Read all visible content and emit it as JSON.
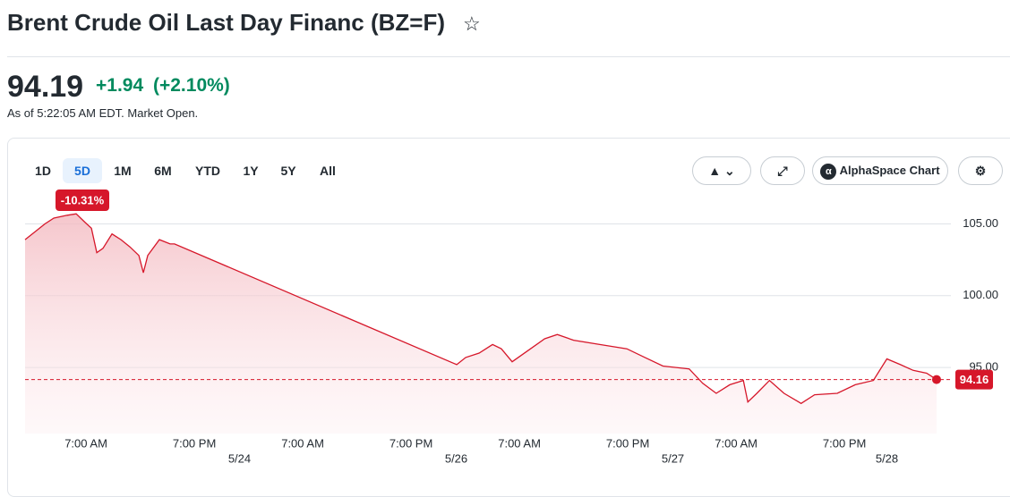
{
  "header": {
    "title": "Brent Crude Oil Last Day Financ (BZ=F)",
    "price": "94.19",
    "change": "+1.94",
    "change_percent": "(+2.10%)",
    "as_of": "As of 5:22:05 AM EDT. Market Open."
  },
  "toolbar": {
    "ranges": [
      "1D",
      "5D",
      "1M",
      "6M",
      "YTD",
      "1Y",
      "5Y",
      "All"
    ],
    "alphaspace": "AlphaSpace Chart"
  },
  "chart_data": {
    "type": "line",
    "color": "#d6172a",
    "badge": "-10.31%",
    "current_value": 94.16,
    "x": [
      -6.75,
      -5.55,
      -4.56,
      -3.57,
      -2.08,
      -1.09,
      -0.1,
      0.6,
      1.19,
      1.88,
      2.88,
      3.87,
      4.86,
      5.85,
      6.35,
      6.84,
      8.13,
      9.32,
      9.8,
      41.06,
      42.05,
      43.54,
      45.03,
      46.0,
      47.2,
      49.0,
      50.8,
      52.2,
      54.0,
      56.9,
      59.9,
      61.9,
      63.9,
      66.8,
      68.3,
      69.8,
      71.3,
      72.8,
      73.3,
      74.3,
      75.7,
      77.3,
      79.2,
      80.7,
      83.2,
      85.2,
      87.2,
      88.7,
      90.2,
      91.6,
      93.1,
      94.2
    ],
    "values": [
      103.9,
      104.5,
      105.0,
      105.4,
      105.6,
      105.7,
      105.1,
      104.7,
      103.0,
      103.3,
      104.3,
      103.9,
      103.4,
      102.8,
      101.6,
      102.8,
      103.9,
      103.6,
      103.6,
      95.2,
      95.7,
      96.0,
      96.6,
      96.3,
      95.4,
      96.2,
      97.0,
      97.3,
      96.9,
      96.6,
      96.3,
      95.7,
      95.1,
      94.9,
      93.9,
      93.2,
      93.8,
      94.1,
      92.6,
      93.2,
      94.1,
      93.2,
      92.5,
      93.1,
      93.2,
      93.8,
      94.1,
      95.6,
      95.2,
      94.8,
      94.6,
      94.16
    ],
    "xlim": [
      -6.75,
      94.5
    ],
    "xticks": [
      {
        "value": 0,
        "label": "7:00 AM"
      },
      {
        "value": 12,
        "label": "7:00 PM"
      },
      {
        "value": 24,
        "label": "7:00 AM"
      },
      {
        "value": 36,
        "label": "7:00 PM"
      },
      {
        "value": 48,
        "label": "7:00 AM"
      },
      {
        "value": 60,
        "label": "7:00 PM"
      },
      {
        "value": 72,
        "label": "7:00 AM"
      },
      {
        "value": 84,
        "label": "7:00 PM"
      }
    ],
    "date_ticks": [
      {
        "value": 17,
        "label": "5/24"
      },
      {
        "value": 41,
        "label": "5/26"
      },
      {
        "value": 65,
        "label": "5/27"
      },
      {
        "value": 88.7,
        "label": "5/28"
      }
    ],
    "ylim": [
      90.4,
      105.9
    ],
    "yticks": [
      {
        "value": 95,
        "label": "95.00"
      },
      {
        "value": 100,
        "label": "100.00"
      },
      {
        "value": 105,
        "label": "105.00"
      }
    ],
    "grid": true
  }
}
